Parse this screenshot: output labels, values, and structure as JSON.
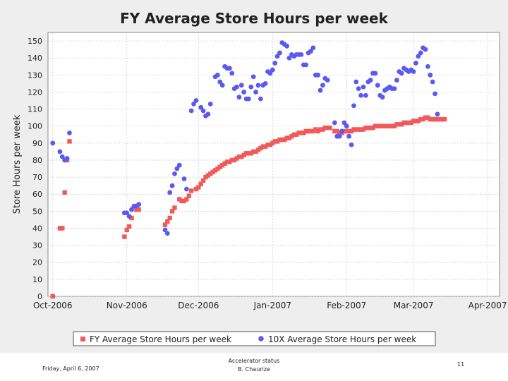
{
  "chart_data": {
    "type": "scatter",
    "title": "FY Average Store Hours per week",
    "xlabel": "",
    "ylabel": "Store Hours per week",
    "ylim": [
      0,
      155
    ],
    "yticks": [
      0,
      10,
      20,
      30,
      40,
      50,
      60,
      70,
      80,
      90,
      100,
      110,
      120,
      130,
      140,
      150
    ],
    "x_unit": "days since 2006-10-01",
    "xlim": [
      -2,
      187
    ],
    "x_ticks": [
      {
        "label": "Oct-2006",
        "day": 0
      },
      {
        "label": "Nov-2006",
        "day": 31
      },
      {
        "label": "Dec-2006",
        "day": 61
      },
      {
        "label": "Jan-2007",
        "day": 92
      },
      {
        "label": "Feb-2007",
        "day": 123
      },
      {
        "label": "Mar-2007",
        "day": 151
      },
      {
        "label": "Apr-2007",
        "day": 182
      }
    ],
    "grid": true,
    "legend_position": "bottom",
    "series": [
      {
        "name": "FY Average Store Hours per week",
        "color": "#f05a5a",
        "marker": "square",
        "points": [
          [
            0,
            0
          ],
          [
            3,
            40
          ],
          [
            4,
            40
          ],
          [
            5,
            61
          ],
          [
            6,
            80
          ],
          [
            7,
            91
          ],
          [
            30,
            35
          ],
          [
            31,
            39
          ],
          [
            32,
            41
          ],
          [
            33,
            46
          ],
          [
            35,
            51
          ],
          [
            36,
            51
          ],
          [
            47,
            42
          ],
          [
            48,
            44
          ],
          [
            49,
            46
          ],
          [
            50,
            50
          ],
          [
            51,
            52
          ],
          [
            53,
            57
          ],
          [
            54,
            56
          ],
          [
            55,
            56
          ],
          [
            56,
            57
          ],
          [
            57,
            59
          ],
          [
            58,
            62
          ],
          [
            60,
            63
          ],
          [
            61,
            64
          ],
          [
            62,
            66
          ],
          [
            63,
            68
          ],
          [
            64,
            70
          ],
          [
            65,
            71
          ],
          [
            66,
            72
          ],
          [
            67,
            73
          ],
          [
            68,
            74
          ],
          [
            69,
            75
          ],
          [
            70,
            76
          ],
          [
            71,
            77
          ],
          [
            72,
            78
          ],
          [
            73,
            79
          ],
          [
            74,
            79
          ],
          [
            75,
            80
          ],
          [
            76,
            80
          ],
          [
            77,
            81
          ],
          [
            78,
            82
          ],
          [
            79,
            82
          ],
          [
            80,
            83
          ],
          [
            81,
            84
          ],
          [
            82,
            84
          ],
          [
            83,
            84
          ],
          [
            84,
            85
          ],
          [
            85,
            85
          ],
          [
            86,
            86
          ],
          [
            87,
            87
          ],
          [
            88,
            88
          ],
          [
            89,
            88
          ],
          [
            90,
            89
          ],
          [
            91,
            89
          ],
          [
            92,
            90
          ],
          [
            93,
            91
          ],
          [
            94,
            91
          ],
          [
            95,
            92
          ],
          [
            96,
            92
          ],
          [
            97,
            92
          ],
          [
            98,
            93
          ],
          [
            99,
            93
          ],
          [
            100,
            94
          ],
          [
            101,
            95
          ],
          [
            102,
            95
          ],
          [
            103,
            96
          ],
          [
            104,
            96
          ],
          [
            105,
            96
          ],
          [
            106,
            97
          ],
          [
            107,
            97
          ],
          [
            108,
            97
          ],
          [
            109,
            97
          ],
          [
            110,
            98
          ],
          [
            111,
            97
          ],
          [
            112,
            98
          ],
          [
            113,
            98
          ],
          [
            114,
            99
          ],
          [
            115,
            99
          ],
          [
            116,
            99
          ],
          [
            118,
            97
          ],
          [
            119,
            97
          ],
          [
            120,
            96
          ],
          [
            121,
            96
          ],
          [
            122,
            97
          ],
          [
            123,
            97
          ],
          [
            124,
            97
          ],
          [
            125,
            97
          ],
          [
            126,
            98
          ],
          [
            127,
            98
          ],
          [
            128,
            98
          ],
          [
            129,
            98
          ],
          [
            130,
            98
          ],
          [
            131,
            99
          ],
          [
            132,
            99
          ],
          [
            133,
            99
          ],
          [
            134,
            99
          ],
          [
            135,
            100
          ],
          [
            136,
            100
          ],
          [
            137,
            100
          ],
          [
            138,
            100
          ],
          [
            139,
            100
          ],
          [
            140,
            100
          ],
          [
            141,
            100
          ],
          [
            142,
            100
          ],
          [
            143,
            100
          ],
          [
            144,
            101
          ],
          [
            145,
            101
          ],
          [
            146,
            101
          ],
          [
            147,
            102
          ],
          [
            148,
            102
          ],
          [
            149,
            102
          ],
          [
            150,
            102
          ],
          [
            151,
            103
          ],
          [
            152,
            103
          ],
          [
            153,
            103
          ],
          [
            154,
            104
          ],
          [
            155,
            104
          ],
          [
            156,
            105
          ],
          [
            157,
            105
          ],
          [
            158,
            104
          ],
          [
            159,
            104
          ],
          [
            160,
            104
          ],
          [
            161,
            104
          ],
          [
            162,
            104
          ],
          [
            163,
            104
          ],
          [
            164,
            104
          ]
        ]
      },
      {
        "name": "10X Average Store Hours per week",
        "color": "#5a5af0",
        "marker": "circle",
        "points": [
          [
            0,
            90
          ],
          [
            3,
            85
          ],
          [
            4,
            82
          ],
          [
            5,
            80
          ],
          [
            6,
            81
          ],
          [
            7,
            96
          ],
          [
            30,
            49
          ],
          [
            31,
            49
          ],
          [
            32,
            47
          ],
          [
            33,
            51
          ],
          [
            34,
            53
          ],
          [
            35,
            53
          ],
          [
            36,
            54
          ],
          [
            47,
            39
          ],
          [
            48,
            37
          ],
          [
            49,
            61
          ],
          [
            50,
            65
          ],
          [
            51,
            72
          ],
          [
            52,
            75
          ],
          [
            53,
            77
          ],
          [
            55,
            69
          ],
          [
            56,
            63
          ],
          [
            58,
            109
          ],
          [
            59,
            113
          ],
          [
            60,
            115
          ],
          [
            62,
            111
          ],
          [
            63,
            109
          ],
          [
            64,
            106
          ],
          [
            65,
            107
          ],
          [
            66,
            113
          ],
          [
            68,
            129
          ],
          [
            69,
            130
          ],
          [
            70,
            126
          ],
          [
            71,
            124
          ],
          [
            72,
            135
          ],
          [
            73,
            134
          ],
          [
            74,
            134
          ],
          [
            75,
            131
          ],
          [
            76,
            122
          ],
          [
            77,
            123
          ],
          [
            78,
            117
          ],
          [
            79,
            124
          ],
          [
            80,
            120
          ],
          [
            81,
            116
          ],
          [
            82,
            116
          ],
          [
            83,
            123
          ],
          [
            84,
            129
          ],
          [
            85,
            120
          ],
          [
            86,
            124
          ],
          [
            87,
            116
          ],
          [
            88,
            124
          ],
          [
            89,
            125
          ],
          [
            90,
            132
          ],
          [
            91,
            131
          ],
          [
            92,
            133
          ],
          [
            93,
            137
          ],
          [
            94,
            141
          ],
          [
            95,
            143
          ],
          [
            96,
            149
          ],
          [
            97,
            148
          ],
          [
            98,
            147
          ],
          [
            99,
            140
          ],
          [
            100,
            142
          ],
          [
            101,
            141
          ],
          [
            102,
            142
          ],
          [
            103,
            142
          ],
          [
            104,
            142
          ],
          [
            105,
            136
          ],
          [
            106,
            136
          ],
          [
            107,
            143
          ],
          [
            108,
            144
          ],
          [
            109,
            146
          ],
          [
            110,
            130
          ],
          [
            111,
            130
          ],
          [
            112,
            121
          ],
          [
            113,
            124
          ],
          [
            114,
            128
          ],
          [
            115,
            127
          ],
          [
            118,
            102
          ],
          [
            119,
            94
          ],
          [
            120,
            94
          ],
          [
            121,
            97
          ],
          [
            122,
            102
          ],
          [
            123,
            100
          ],
          [
            124,
            94
          ],
          [
            125,
            89
          ],
          [
            126,
            112
          ],
          [
            127,
            126
          ],
          [
            128,
            122
          ],
          [
            129,
            118
          ],
          [
            130,
            123
          ],
          [
            131,
            118
          ],
          [
            132,
            126
          ],
          [
            133,
            127
          ],
          [
            134,
            131
          ],
          [
            135,
            131
          ],
          [
            136,
            124
          ],
          [
            137,
            118
          ],
          [
            138,
            117
          ],
          [
            139,
            121
          ],
          [
            140,
            122
          ],
          [
            141,
            123
          ],
          [
            142,
            122
          ],
          [
            143,
            122
          ],
          [
            144,
            127
          ],
          [
            145,
            132
          ],
          [
            146,
            131
          ],
          [
            147,
            134
          ],
          [
            148,
            133
          ],
          [
            149,
            132
          ],
          [
            150,
            133
          ],
          [
            151,
            132
          ],
          [
            152,
            137
          ],
          [
            153,
            141
          ],
          [
            154,
            143
          ],
          [
            155,
            146
          ],
          [
            156,
            145
          ],
          [
            157,
            135
          ],
          [
            158,
            130
          ],
          [
            159,
            126
          ],
          [
            160,
            119
          ],
          [
            161,
            107
          ]
        ]
      }
    ]
  },
  "footer": {
    "date": "Friday, April 6, 2007",
    "center_line1": "Accelerator status",
    "center_line2": "B. Chaurize",
    "page": "11"
  }
}
